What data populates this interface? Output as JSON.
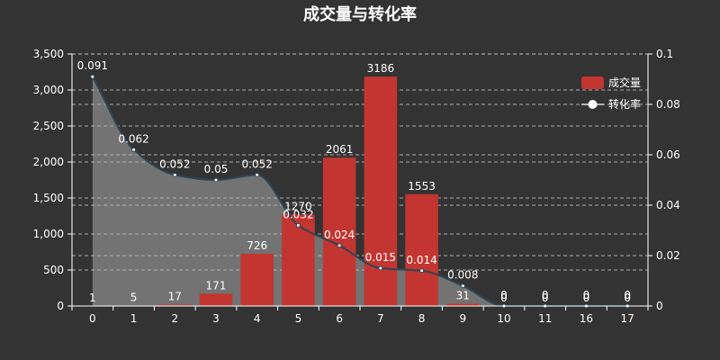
{
  "chart_data": {
    "type": "bar",
    "title": "成交量与转化率",
    "categories": [
      "0",
      "1",
      "2",
      "3",
      "4",
      "5",
      "6",
      "7",
      "8",
      "9",
      "10",
      "11",
      "16",
      "17"
    ],
    "y_left_ticks": [
      "0",
      "500",
      "1,000",
      "1,500",
      "2,000",
      "2,500",
      "3,000",
      "3,500"
    ],
    "y_right_ticks": [
      "0",
      "0.02",
      "0.04",
      "0.06",
      "0.08",
      "0.1"
    ],
    "ylim_left": [
      0,
      3500
    ],
    "ylim_right": [
      0,
      0.1
    ],
    "grid": true,
    "legend_position": "top-right",
    "series": [
      {
        "name": "成交量",
        "type": "bar",
        "axis": "left",
        "color": "#c23531",
        "values": [
          1,
          5,
          17,
          171,
          726,
          1270,
          2061,
          3186,
          1553,
          31,
          0,
          0,
          0,
          0
        ],
        "labels": [
          "1",
          "5",
          "17",
          "171",
          "726",
          "1270",
          "2061",
          "3186",
          "1553",
          "31",
          "0",
          "0",
          "0",
          "0"
        ]
      },
      {
        "name": "转化率",
        "type": "area",
        "axis": "right",
        "color": "#2f4554",
        "fill": "#b3b3b3",
        "values": [
          0.091,
          0.062,
          0.052,
          0.05,
          0.052,
          0.032,
          0.024,
          0.015,
          0.014,
          0.008,
          0,
          0,
          0,
          0
        ],
        "labels": [
          "0.091",
          "0.062",
          "0.052",
          "0.05",
          "0.052",
          "0.032",
          "0.024",
          "0.015",
          "0.014",
          "0.008",
          "0",
          "0",
          "0",
          "0"
        ]
      }
    ]
  }
}
